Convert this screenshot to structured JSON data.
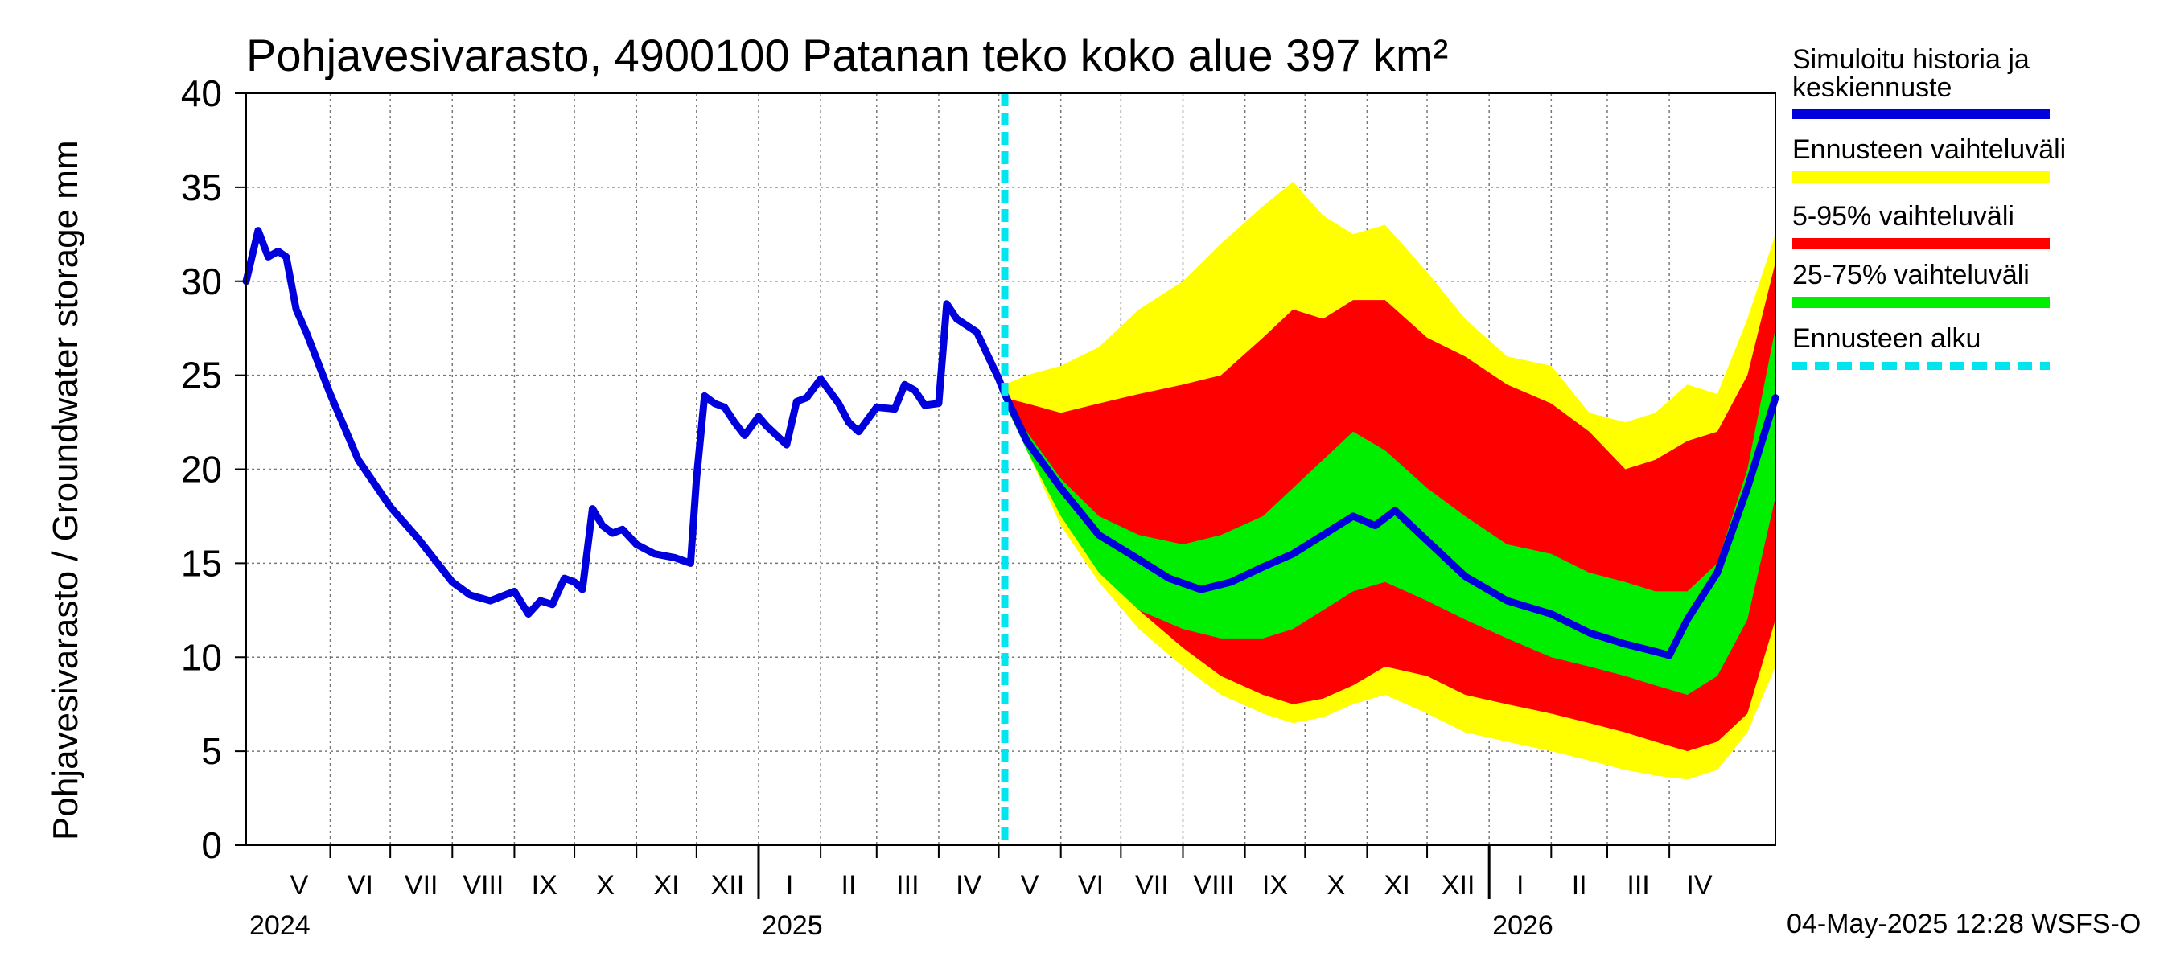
{
  "chart_data": {
    "type": "area",
    "title": "Pohjavesivarasto, 4900100 Patanan teko koko alue 397 km²",
    "ylabel": "Pohjavesivarasto / Groundwater storage   mm",
    "ylim": [
      0,
      40
    ],
    "yticks": [
      0,
      5,
      10,
      15,
      20,
      25,
      30,
      35,
      40
    ],
    "xlim": [
      "2024-04-20",
      "2026-05-24"
    ],
    "grid": true,
    "legend_position": "right",
    "forecast_start": "2025-05-04",
    "months": [
      {
        "label": "V",
        "start": "2024-05-01",
        "end": "2024-06-01"
      },
      {
        "label": "VI",
        "start": "2024-06-01",
        "end": "2024-07-01"
      },
      {
        "label": "VII",
        "start": "2024-07-01",
        "end": "2024-08-01"
      },
      {
        "label": "VIII",
        "start": "2024-08-01",
        "end": "2024-09-01"
      },
      {
        "label": "IX",
        "start": "2024-09-01",
        "end": "2024-10-01"
      },
      {
        "label": "X",
        "start": "2024-10-01",
        "end": "2024-11-01"
      },
      {
        "label": "XI",
        "start": "2024-11-01",
        "end": "2024-12-01"
      },
      {
        "label": "XII",
        "start": "2024-12-01",
        "end": "2025-01-01"
      },
      {
        "label": "I",
        "start": "2025-01-01",
        "end": "2025-02-01"
      },
      {
        "label": "II",
        "start": "2025-02-01",
        "end": "2025-03-01"
      },
      {
        "label": "III",
        "start": "2025-03-01",
        "end": "2025-04-01"
      },
      {
        "label": "IV",
        "start": "2025-04-01",
        "end": "2025-05-01"
      },
      {
        "label": "V",
        "start": "2025-05-01",
        "end": "2025-06-01"
      },
      {
        "label": "VI",
        "start": "2025-06-01",
        "end": "2025-07-01"
      },
      {
        "label": "VII",
        "start": "2025-07-01",
        "end": "2025-08-01"
      },
      {
        "label": "VIII",
        "start": "2025-08-01",
        "end": "2025-09-01"
      },
      {
        "label": "IX",
        "start": "2025-09-01",
        "end": "2025-10-01"
      },
      {
        "label": "X",
        "start": "2025-10-01",
        "end": "2025-11-01"
      },
      {
        "label": "XI",
        "start": "2025-11-01",
        "end": "2025-12-01"
      },
      {
        "label": "XII",
        "start": "2025-12-01",
        "end": "2026-01-01"
      },
      {
        "label": "I",
        "start": "2026-01-01",
        "end": "2026-02-01"
      },
      {
        "label": "II",
        "start": "2026-02-01",
        "end": "2026-03-01"
      },
      {
        "label": "III",
        "start": "2026-03-01",
        "end": "2026-04-01"
      },
      {
        "label": "IV",
        "start": "2026-04-01",
        "end": "2026-05-01"
      }
    ],
    "years": [
      {
        "label": "2024",
        "date": "2024-04-20"
      },
      {
        "label": "2025",
        "date": "2025-01-01"
      },
      {
        "label": "2026",
        "date": "2026-01-01"
      }
    ],
    "series": [
      {
        "name": "Ennusteen vaihteluväli",
        "kind": "band",
        "color": "#ffff00",
        "x": [
          "2025-05-04",
          "2025-05-15",
          "2025-06-01",
          "2025-06-20",
          "2025-07-10",
          "2025-08-01",
          "2025-08-20",
          "2025-09-10",
          "2025-09-25",
          "2025-10-10",
          "2025-10-25",
          "2025-11-10",
          "2025-12-01",
          "2025-12-20",
          "2026-01-10",
          "2026-02-01",
          "2026-02-20",
          "2026-03-10",
          "2026-03-25",
          "2026-04-10",
          "2026-04-25",
          "2026-05-10",
          "2026-05-24"
        ],
        "upper": [
          24.5,
          25.0,
          25.5,
          26.5,
          28.5,
          30.0,
          32.0,
          34.0,
          35.3,
          33.5,
          32.5,
          33.0,
          30.5,
          28.0,
          26.0,
          25.5,
          23.0,
          22.5,
          23.0,
          24.5,
          24.0,
          28.0,
          32.5
        ],
        "lower": [
          23.5,
          21.0,
          17.0,
          14.0,
          11.5,
          9.5,
          8.0,
          7.0,
          6.5,
          6.8,
          7.5,
          8.0,
          7.0,
          6.0,
          5.5,
          5.0,
          4.5,
          4.0,
          3.7,
          3.5,
          4.0,
          6.0,
          9.5
        ]
      },
      {
        "name": "5-95% vaihteluväli",
        "kind": "band",
        "color": "#ff0000",
        "x": [
          "2025-05-04",
          "2025-05-15",
          "2025-06-01",
          "2025-06-20",
          "2025-07-10",
          "2025-08-01",
          "2025-08-20",
          "2025-09-10",
          "2025-09-25",
          "2025-10-10",
          "2025-10-25",
          "2025-11-10",
          "2025-12-01",
          "2025-12-20",
          "2026-01-10",
          "2026-02-01",
          "2026-02-20",
          "2026-03-10",
          "2026-03-25",
          "2026-04-10",
          "2026-04-25",
          "2026-05-10",
          "2026-05-24"
        ],
        "upper": [
          23.8,
          23.5,
          23.0,
          23.5,
          24.0,
          24.5,
          25.0,
          27.0,
          28.5,
          28.0,
          29.0,
          29.0,
          27.0,
          26.0,
          24.5,
          23.5,
          22.0,
          20.0,
          20.5,
          21.5,
          22.0,
          25.0,
          31.0
        ],
        "lower": [
          23.5,
          21.5,
          18.0,
          15.0,
          12.5,
          10.5,
          9.0,
          8.0,
          7.5,
          7.8,
          8.5,
          9.5,
          9.0,
          8.0,
          7.5,
          7.0,
          6.5,
          6.0,
          5.5,
          5.0,
          5.5,
          7.0,
          12.0
        ]
      },
      {
        "name": "25-75% vaihteluväli",
        "kind": "band",
        "color": "#00ee00",
        "x": [
          "2025-05-04",
          "2025-05-15",
          "2025-06-01",
          "2025-06-20",
          "2025-07-10",
          "2025-08-01",
          "2025-08-20",
          "2025-09-10",
          "2025-09-25",
          "2025-10-10",
          "2025-10-25",
          "2025-11-10",
          "2025-12-01",
          "2025-12-20",
          "2026-01-10",
          "2026-02-01",
          "2026-02-20",
          "2026-03-10",
          "2026-03-25",
          "2026-04-10",
          "2026-04-25",
          "2026-05-10",
          "2026-05-24"
        ],
        "upper": [
          23.5,
          22.0,
          19.5,
          17.5,
          16.5,
          16.0,
          16.5,
          17.5,
          19.0,
          20.5,
          22.0,
          21.0,
          19.0,
          17.5,
          16.0,
          15.5,
          14.5,
          14.0,
          13.5,
          13.5,
          15.0,
          20.0,
          27.5
        ],
        "lower": [
          23.5,
          21.0,
          17.5,
          14.5,
          12.5,
          11.5,
          11.0,
          11.0,
          11.5,
          12.5,
          13.5,
          14.0,
          13.0,
          12.0,
          11.0,
          10.0,
          9.5,
          9.0,
          8.5,
          8.0,
          9.0,
          12.0,
          18.5
        ]
      },
      {
        "name": "Simuloitu historia ja keskiennuste",
        "kind": "line",
        "color": "#0000dd",
        "x": [
          "2024-04-20",
          "2024-04-26",
          "2024-05-01",
          "2024-05-06",
          "2024-05-10",
          "2024-05-15",
          "2024-05-20",
          "2024-06-01",
          "2024-06-15",
          "2024-07-01",
          "2024-07-15",
          "2024-08-01",
          "2024-08-10",
          "2024-08-20",
          "2024-09-01",
          "2024-09-08",
          "2024-09-14",
          "2024-09-20",
          "2024-09-26",
          "2024-10-01",
          "2024-10-05",
          "2024-10-10",
          "2024-10-15",
          "2024-10-20",
          "2024-10-25",
          "2024-11-01",
          "2024-11-10",
          "2024-11-20",
          "2024-11-28",
          "2024-12-01",
          "2024-12-05",
          "2024-12-10",
          "2024-12-15",
          "2024-12-20",
          "2024-12-25",
          "2025-01-01",
          "2025-01-05",
          "2025-01-10",
          "2025-01-15",
          "2025-01-20",
          "2025-01-25",
          "2025-02-01",
          "2025-02-10",
          "2025-02-15",
          "2025-02-20",
          "2025-03-01",
          "2025-03-10",
          "2025-03-15",
          "2025-03-20",
          "2025-03-25",
          "2025-04-01",
          "2025-04-05",
          "2025-04-10",
          "2025-04-20",
          "2025-05-01",
          "2025-05-04",
          "2025-05-15",
          "2025-06-01",
          "2025-06-20",
          "2025-07-10",
          "2025-07-25",
          "2025-08-10",
          "2025-08-25",
          "2025-09-10",
          "2025-09-25",
          "2025-10-10",
          "2025-10-25",
          "2025-11-05",
          "2025-11-15",
          "2025-12-01",
          "2025-12-20",
          "2026-01-10",
          "2026-02-01",
          "2026-02-20",
          "2026-03-10",
          "2026-03-25",
          "2026-04-01",
          "2026-04-10",
          "2026-04-25",
          "2026-05-10",
          "2026-05-24"
        ],
        "y": [
          30.0,
          32.7,
          31.3,
          31.6,
          31.3,
          28.5,
          27.3,
          24.0,
          20.5,
          18.0,
          16.3,
          14.0,
          13.3,
          13.0,
          13.5,
          12.3,
          13.0,
          12.8,
          14.2,
          14.0,
          13.6,
          17.9,
          17.0,
          16.6,
          16.8,
          16.0,
          15.5,
          15.3,
          15.0,
          19.5,
          23.9,
          23.5,
          23.3,
          22.5,
          21.8,
          22.8,
          22.3,
          21.8,
          21.3,
          23.6,
          23.8,
          24.8,
          23.5,
          22.5,
          22.0,
          23.3,
          23.2,
          24.5,
          24.2,
          23.4,
          23.5,
          28.8,
          28.0,
          27.3,
          24.8,
          24.0,
          21.5,
          19.0,
          16.5,
          15.2,
          14.2,
          13.6,
          14.0,
          14.8,
          15.5,
          16.5,
          17.5,
          17.0,
          17.8,
          16.2,
          14.3,
          13.0,
          12.3,
          11.3,
          10.7,
          10.3,
          10.1,
          12.0,
          14.5,
          19.0,
          23.8
        ]
      },
      {
        "name": "Ennusteen alku",
        "kind": "vline",
        "color": "#00e5ee",
        "x": "2025-05-04"
      }
    ],
    "footer": "04-May-2025 12:28 WSFS-O"
  },
  "legend": {
    "items": [
      {
        "label": "Simuloitu historia ja keskiennuste",
        "line1": "Simuloitu historia ja",
        "line2": "keskiennuste",
        "color": "#0000dd",
        "style": "solid"
      },
      {
        "label": "Ennusteen vaihteluväli",
        "color": "#ffff00",
        "style": "solid"
      },
      {
        "label": "5-95% vaihteluväli",
        "color": "#ff0000",
        "style": "solid"
      },
      {
        "label": "25-75% vaihteluväli",
        "color": "#00ee00",
        "style": "solid"
      },
      {
        "label": "Ennusteen alku",
        "color": "#00e5ee",
        "style": "dashed"
      }
    ]
  }
}
